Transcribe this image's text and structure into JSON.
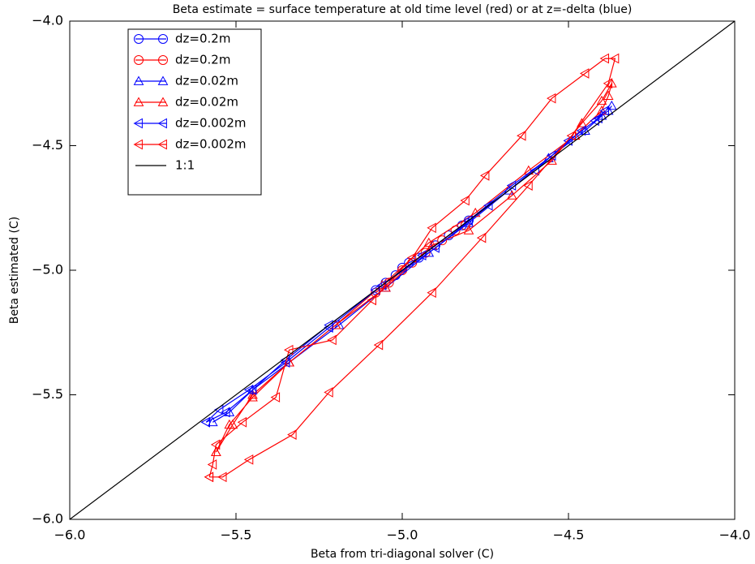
{
  "chart_data": {
    "type": "line",
    "title": "Beta estimate = surface temperature at old time level (red) or at z=-delta (blue)",
    "x_label": "Beta from tri-diagonal solver (C)",
    "y_label": "Beta estimated (C)",
    "xlim": [
      -6,
      -4
    ],
    "ylim": [
      -6,
      -4
    ],
    "xticks": [
      {
        "value": -6,
        "label": "−6.0"
      },
      {
        "value": -5.5,
        "label": "−5.5"
      },
      {
        "value": -5,
        "label": "−5.0"
      },
      {
        "value": -4.5,
        "label": "−4.5"
      },
      {
        "value": -4,
        "label": "−4.0"
      }
    ],
    "yticks": [
      {
        "value": -6,
        "label": "−6.0"
      },
      {
        "value": -5.5,
        "label": "−5.5"
      },
      {
        "value": -5,
        "label": "−5.0"
      },
      {
        "value": -4.5,
        "label": "−4.5"
      },
      {
        "value": -4,
        "label": "−4.0"
      }
    ],
    "legend": "upper left",
    "series": [
      {
        "name": "dz=0.2m",
        "color": "#0000ff",
        "marker": "circle",
        "x": [
          -5.08,
          -5.05,
          -5.02,
          -5.0,
          -4.98,
          -4.95,
          -4.9,
          -4.86,
          -4.82,
          -4.8
        ],
        "values": [
          -5.08,
          -5.05,
          -5.02,
          -4.99,
          -4.97,
          -4.95,
          -4.9,
          -4.86,
          -4.82,
          -4.8
        ]
      },
      {
        "name": "dz=0.2m",
        "color": "#ff0000",
        "marker": "circle",
        "x": [
          -5.08,
          -5.04,
          -5.0,
          -4.97,
          -4.93,
          -4.88,
          -4.84,
          -4.81
        ],
        "values": [
          -5.09,
          -5.05,
          -5.0,
          -4.97,
          -4.93,
          -4.88,
          -4.84,
          -4.82
        ]
      },
      {
        "name": "dz=0.02m",
        "color": "#0000ff",
        "marker": "triangle-up",
        "x": [
          -5.57,
          -5.52,
          -5.45,
          -5.34,
          -5.19,
          -5.05,
          -4.92,
          -4.8,
          -4.68,
          -4.56,
          -4.45,
          -4.4,
          -4.38,
          -4.37
        ],
        "values": [
          -5.61,
          -5.57,
          -5.48,
          -5.37,
          -5.22,
          -5.07,
          -4.93,
          -4.81,
          -4.68,
          -4.55,
          -4.44,
          -4.38,
          -4.36,
          -4.34
        ]
      },
      {
        "name": "dz=0.02m",
        "color": "#ff0000",
        "marker": "triangle-up",
        "x": [
          -5.56,
          -5.51,
          -5.45,
          -5.34,
          -5.2,
          -5.06,
          -4.92,
          -4.78,
          -4.62,
          -4.48,
          -4.4,
          -4.38,
          -4.37,
          -4.4,
          -4.46,
          -4.55,
          -4.67,
          -4.8,
          -4.91,
          -5.05,
          -5.2,
          -5.34,
          -5.45,
          -5.52,
          -5.56
        ],
        "values": [
          -5.73,
          -5.62,
          -5.5,
          -5.37,
          -5.22,
          -5.06,
          -4.89,
          -4.77,
          -4.6,
          -4.46,
          -4.36,
          -4.3,
          -4.25,
          -4.32,
          -4.41,
          -4.56,
          -4.7,
          -4.84,
          -4.9,
          -5.07,
          -5.22,
          -5.37,
          -5.51,
          -5.62,
          -5.73
        ]
      },
      {
        "name": "dz=0.002m",
        "color": "#0000ff",
        "marker": "triangle-left",
        "x": [
          -5.59,
          -5.53,
          -5.45,
          -5.35,
          -5.22,
          -5.08,
          -4.94,
          -4.8,
          -4.67,
          -4.55,
          -4.46,
          -4.41,
          -4.39,
          -4.42,
          -4.5,
          -4.6,
          -4.74,
          -4.9,
          -5.06,
          -5.22,
          -5.35,
          -5.46,
          -5.55,
          -5.59
        ],
        "values": [
          -5.61,
          -5.57,
          -5.48,
          -5.36,
          -5.22,
          -5.08,
          -4.94,
          -4.8,
          -4.66,
          -4.54,
          -4.44,
          -4.39,
          -4.36,
          -4.4,
          -4.48,
          -4.6,
          -4.74,
          -4.91,
          -5.06,
          -5.23,
          -5.37,
          -5.48,
          -5.56,
          -5.61
        ]
      },
      {
        "name": "dz=0.002m",
        "color": "#ff0000",
        "marker": "triangle-left",
        "x": [
          -5.58,
          -5.54,
          -5.46,
          -5.33,
          -5.22,
          -5.07,
          -4.91,
          -4.76,
          -4.62,
          -4.49,
          -4.38,
          -4.36,
          -4.39,
          -4.45,
          -4.55,
          -4.64,
          -4.75,
          -4.81,
          -4.91,
          -4.97,
          -5.09,
          -5.21,
          -5.34,
          -5.38,
          -5.48,
          -5.56,
          -5.57,
          -5.58
        ],
        "values": [
          -5.83,
          -5.83,
          -5.76,
          -5.66,
          -5.49,
          -5.3,
          -5.09,
          -4.87,
          -4.66,
          -4.46,
          -4.25,
          -4.15,
          -4.15,
          -4.21,
          -4.31,
          -4.46,
          -4.62,
          -4.72,
          -4.83,
          -4.95,
          -5.12,
          -5.28,
          -5.32,
          -5.51,
          -5.61,
          -5.7,
          -5.78,
          -5.83
        ]
      },
      {
        "name": "1:1",
        "color": "#000000",
        "marker": null,
        "x": [
          -6,
          -4
        ],
        "values": [
          -6,
          -4
        ]
      }
    ]
  }
}
